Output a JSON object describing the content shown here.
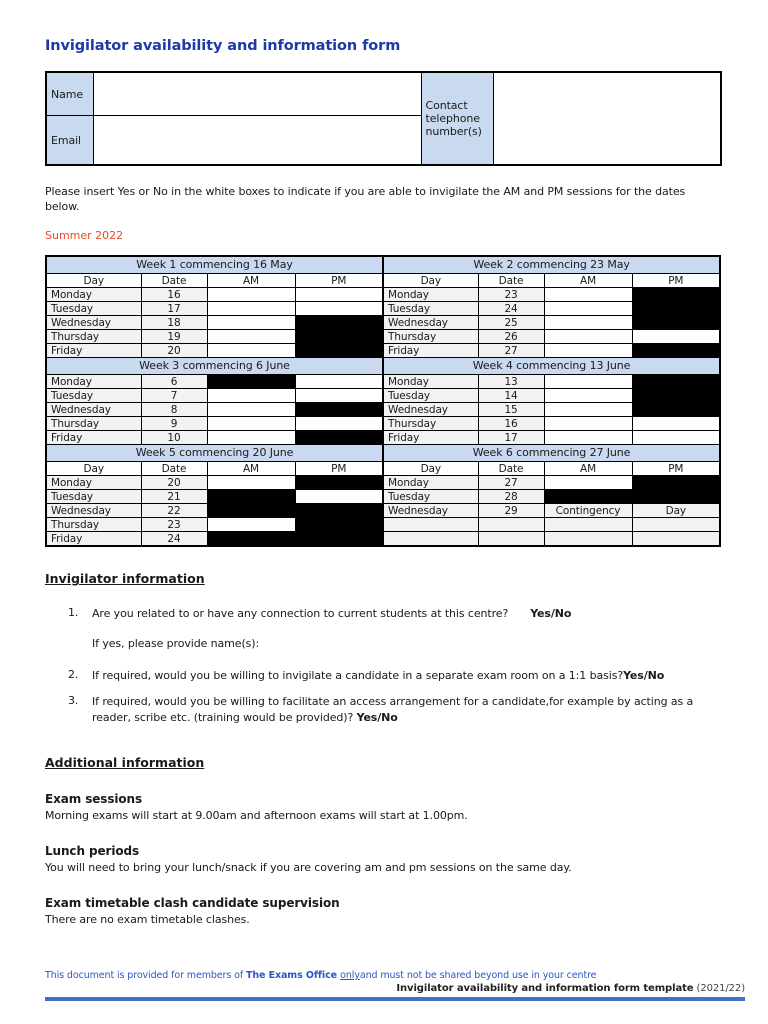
{
  "colors": {
    "title_blue": "#1c3aa8",
    "light_blue_fill": "#c9daf0",
    "grey_fill": "#f2f2f2",
    "blocked_fill": "#000000",
    "season_red": "#e8492b",
    "footer_blue": "#2b56c5",
    "footer_rule_blue": "#4470c0"
  },
  "header": {
    "title": "Invigilator availability and information form"
  },
  "contact": {
    "name_label": "Name",
    "name_value": "",
    "email_label": "Email",
    "email_value": "",
    "phone_label": "Contact telephone number(s)",
    "phone_value": ""
  },
  "intro_text": "Please insert Yes or No in the white boxes to indicate if you are able to invigilate the AM and PM sessions for the dates below.",
  "season_label": "Summer 2022",
  "availability": {
    "column_headers": [
      "Day",
      "Date",
      "AM",
      "PM"
    ],
    "weeks": [
      {
        "title": "Week 1 commencing 16 May",
        "subheader": true,
        "rows": [
          {
            "day": "Monday",
            "date": "16",
            "am": "open",
            "pm": "open"
          },
          {
            "day": "Tuesday",
            "date": "17",
            "am": "open",
            "pm": "open"
          },
          {
            "day": "Wednesday",
            "date": "18",
            "am": "open",
            "pm": "blocked"
          },
          {
            "day": "Thursday",
            "date": "19",
            "am": "open",
            "pm": "blocked"
          },
          {
            "day": "Friday",
            "date": "20",
            "am": "open",
            "pm": "blocked"
          }
        ]
      },
      {
        "title": "Week 2 commencing 23 May",
        "subheader": true,
        "rows": [
          {
            "day": "Monday",
            "date": "23",
            "am": "open",
            "pm": "blocked"
          },
          {
            "day": "Tuesday",
            "date": "24",
            "am": "open",
            "pm": "blocked"
          },
          {
            "day": "Wednesday",
            "date": "25",
            "am": "open",
            "pm": "blocked"
          },
          {
            "day": "Thursday",
            "date": "26",
            "am": "open",
            "pm": "open"
          },
          {
            "day": "Friday",
            "date": "27",
            "am": "open",
            "pm": "blocked"
          }
        ]
      },
      {
        "title": "Week 3 commencing 6 June",
        "subheader": false,
        "rows": [
          {
            "day": "Monday",
            "date": "6",
            "am": "blocked",
            "pm": "open"
          },
          {
            "day": "Tuesday",
            "date": "7",
            "am": "open",
            "pm": "open"
          },
          {
            "day": "Wednesday",
            "date": "8",
            "am": "open",
            "pm": "blocked"
          },
          {
            "day": "Thursday",
            "date": "9",
            "am": "open",
            "pm": "open"
          },
          {
            "day": "Friday",
            "date": "10",
            "am": "open",
            "pm": "blocked"
          }
        ]
      },
      {
        "title": "Week 4 commencing 13 June",
        "subheader": false,
        "rows": [
          {
            "day": "Monday",
            "date": "13",
            "am": "open",
            "pm": "blocked"
          },
          {
            "day": "Tuesday",
            "date": "14",
            "am": "open",
            "pm": "blocked"
          },
          {
            "day": "Wednesday",
            "date": "15",
            "am": "open",
            "pm": "blocked"
          },
          {
            "day": "Thursday",
            "date": "16",
            "am": "open",
            "pm": "open"
          },
          {
            "day": "Friday",
            "date": "17",
            "am": "open",
            "pm": "open"
          }
        ]
      },
      {
        "title": "Week 5 commencing 20 June",
        "subheader": true,
        "rows": [
          {
            "day": "Monday",
            "date": "20",
            "am": "open",
            "pm": "blocked"
          },
          {
            "day": "Tuesday",
            "date": "21",
            "am": "blocked",
            "pm": "open"
          },
          {
            "day": "Wednesday",
            "date": "22",
            "am": "blocked",
            "pm": "blocked"
          },
          {
            "day": "Thursday",
            "date": "23",
            "am": "open",
            "pm": "blocked"
          },
          {
            "day": "Friday",
            "date": "24",
            "am": "blocked",
            "pm": "blocked"
          }
        ]
      },
      {
        "title": "Week 6 commencing 27 June",
        "subheader": true,
        "rows": [
          {
            "day": "Monday",
            "date": "27",
            "am": "open",
            "pm": "blocked"
          },
          {
            "day": "Tuesday",
            "date": "28",
            "am": "blocked",
            "pm": "blocked"
          },
          {
            "day": "Wednesday",
            "date": "29",
            "am": "label:Contingency",
            "pm": "label:Day"
          },
          {
            "day": "",
            "date": "",
            "am": "empty",
            "pm": "empty"
          },
          {
            "day": "",
            "date": "",
            "am": "empty",
            "pm": "empty"
          }
        ]
      }
    ]
  },
  "invigilator_info": {
    "heading": "Invigilator information",
    "questions": [
      {
        "num": "1.",
        "text": "Are you related to or have any connection to current students at this centre?",
        "answer": "Yes/No",
        "followup": "If yes, please provide name(s):"
      },
      {
        "num": "2.",
        "text": "If required, would you be willing to invigilate a candidate in a separate exam room on a 1:1 basis?",
        "answer": "Yes/No"
      },
      {
        "num": "3.",
        "text": "If required, would you be willing to facilitate an access arrangement for a candidate,for example by acting as a reader, scribe etc. (training would be provided)? ",
        "answer": "Yes/No"
      }
    ]
  },
  "additional_info": {
    "heading": "Additional information",
    "sections": [
      {
        "heading": "Exam sessions",
        "text": "Morning exams will start at 9.00am and afternoon exams will start at 1.00pm."
      },
      {
        "heading": "Lunch periods",
        "text": "You will need to bring your lunch/snack if you are covering am and pm sessions on the same day."
      },
      {
        "heading": "Exam timetable clash candidate supervision",
        "text": "There are no exam timetable clashes."
      }
    ]
  },
  "footer": {
    "line1_prefix": "This document is provided for members of ",
    "line1_brand": "The Exams Office ",
    "line1_underline": "only",
    "line1_rest": "and must not be shared beyond use in your centre",
    "line2_bold": "Invigilator availability and information form template",
    "line2_suffix": " (2021/22)"
  }
}
